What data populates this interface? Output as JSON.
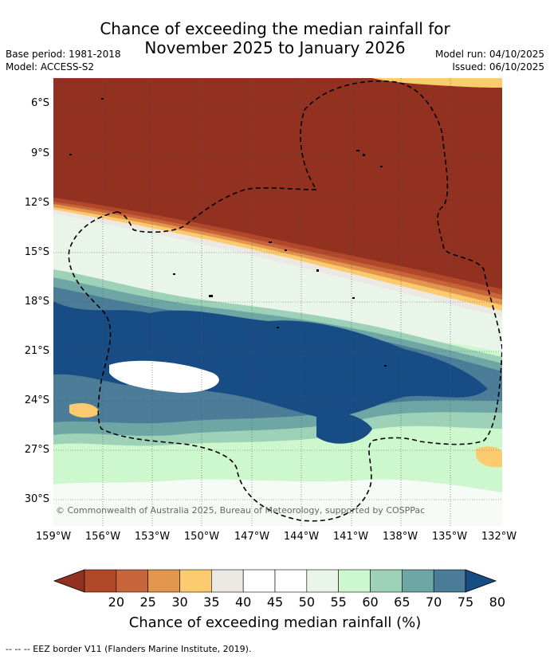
{
  "title": {
    "line1": "Chance of exceeding the median rainfall for",
    "line2": "November 2025 to January 2026"
  },
  "meta": {
    "base_period": "Base period: 1981-2018",
    "model": "Model: ACCESS-S2",
    "model_run": "Model run: 04/10/2025",
    "issued": "Issued: 06/10/2025"
  },
  "map": {
    "lat_labels": [
      "6°S",
      "9°S",
      "12°S",
      "15°S",
      "18°S",
      "21°S",
      "24°S",
      "27°S",
      "30°S"
    ],
    "lon_labels": [
      "159°W",
      "156°W",
      "153°W",
      "150°W",
      "147°W",
      "144°W",
      "141°W",
      "138°W",
      "135°W",
      "132°W"
    ],
    "copyright": "© Commonwealth of Australia 2025, Bureau of Meteorology, supported by COSPPac",
    "lat_range": [
      -31.5,
      -4.5
    ],
    "lon_range": [
      -159,
      -132
    ]
  },
  "colorbar": {
    "labels": [
      "20",
      "25",
      "30",
      "35",
      "40",
      "45",
      "50",
      "55",
      "60",
      "65",
      "70",
      "75",
      "80"
    ],
    "colors": [
      "#933120",
      "#b2482a",
      "#c8643a",
      "#e2954c",
      "#fdcb6f",
      "#ece9e4",
      "#ffffff",
      "#ffffff",
      "#eaf5ea",
      "#cdf8cd",
      "#9dd1b8",
      "#6ea6a6",
      "#4b7c98",
      "#184c84"
    ],
    "title": "Chance of exceeding median rainfall (%)"
  },
  "footnote": "-- -- -- EEZ border V11 (Flanders Marine Institute, 2019)."
}
